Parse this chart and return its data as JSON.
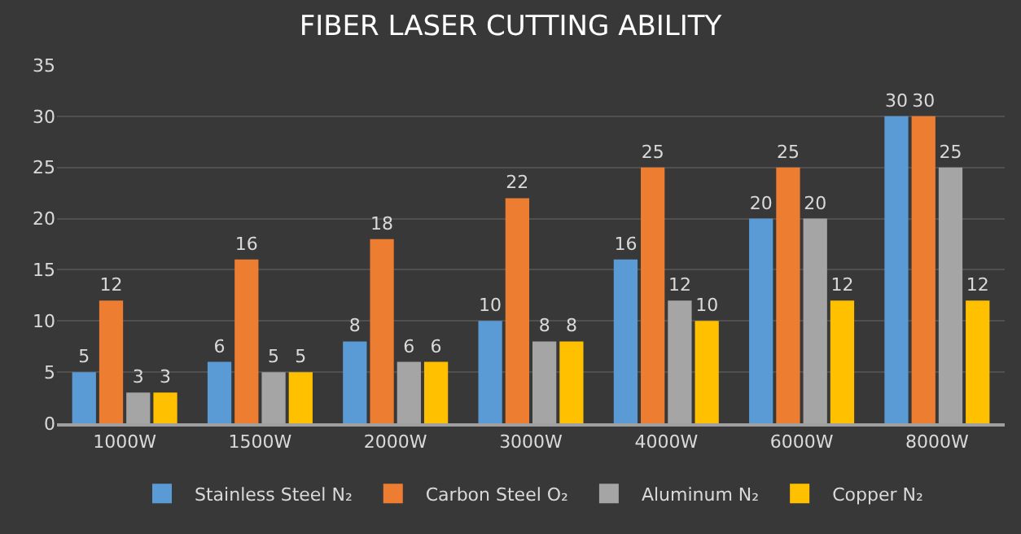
{
  "chart_data": {
    "type": "bar",
    "title": "FIBER LASER CUTTING ABILITY",
    "categories": [
      "1000W",
      "1500W",
      "2000W",
      "3000W",
      "4000W",
      "6000W",
      "8000W"
    ],
    "series": [
      {
        "name": "Stainless Steel N₂",
        "color": "#5b9bd5",
        "values": [
          5,
          6,
          8,
          10,
          16,
          20,
          30
        ]
      },
      {
        "name": "Carbon Steel O₂",
        "color": "#ed7d31",
        "values": [
          12,
          16,
          18,
          22,
          25,
          25,
          30
        ]
      },
      {
        "name": "Aluminum N₂",
        "color": "#a5a5a5",
        "values": [
          3,
          5,
          6,
          8,
          12,
          20,
          25
        ]
      },
      {
        "name": "Copper N₂",
        "color": "#ffc000",
        "values": [
          3,
          5,
          6,
          8,
          10,
          12,
          12
        ]
      }
    ],
    "ylim": [
      0,
      35
    ],
    "yticks": [
      0,
      5,
      10,
      15,
      20,
      25,
      30,
      35
    ],
    "grid": "y",
    "legend": "bottom",
    "data_labels": true
  }
}
